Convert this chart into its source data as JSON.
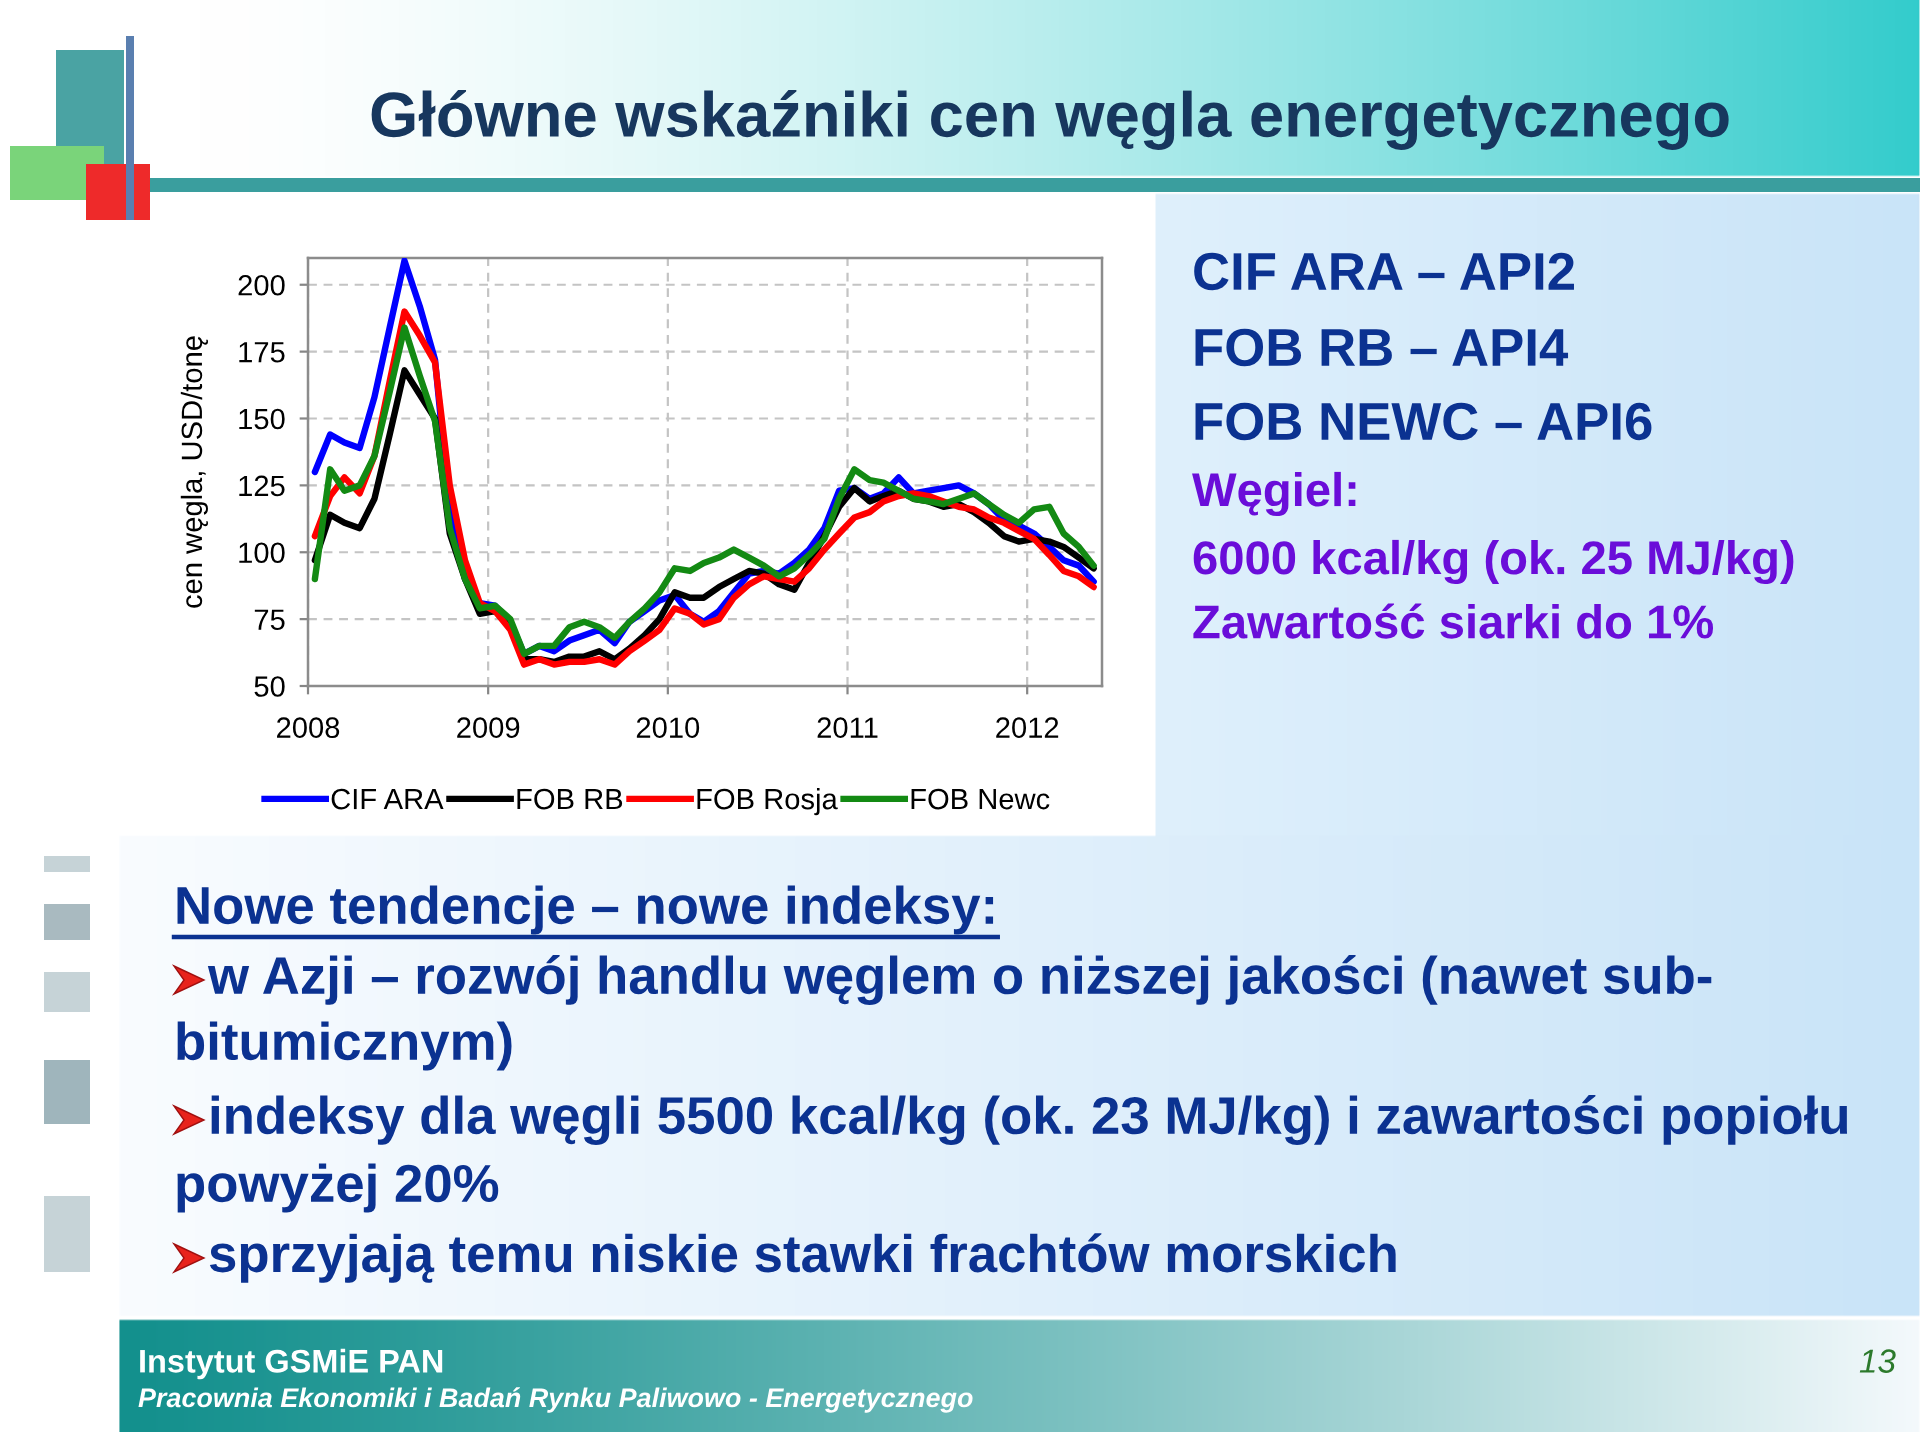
{
  "chart_data": {
    "type": "line",
    "title": "Główne wskaźniki cen węgla energetycznego",
    "ylabel": "cen węgla, USD/tonę",
    "annotations": [
      "CIF ARA – API2",
      "FOB RB – API4",
      "FOB NEWC – API6",
      "Węgiel:",
      "6000 kcal/kg (ok. 25 MJ/kg)",
      "Zawartość siarki do 1%",
      "Nowe tendencje – nowe indeksy:",
      "w Azji – rozwój handlu węglem o niższej jakości (nawet sub-",
      "bitumicznym)",
      "indeksy dla węgli 5500 kcal/kg (ok. 23 MJ/kg) i zawartości popiołu",
      "powyżej 20%",
      "sprzyjają temu niskie stawki frachtów morskich",
      "Instytut GSMiE PAN",
      "Pracownia Ekonomiki i Badań Rynku Paliwowo - Energetycznego",
      "13"
    ],
    "x": [
      "2008-01-15",
      "2008-02-15",
      "2008-03-15",
      "2008-04-15",
      "2008-05-15",
      "2008-06-15",
      "2008-07-15",
      "2008-08-15",
      "2008-09-15",
      "2008-10-15",
      "2008-11-15",
      "2008-12-15",
      "2009-01-15",
      "2009-02-15",
      "2009-03-15",
      "2009-04-15",
      "2009-05-15",
      "2009-06-15",
      "2009-07-15",
      "2009-08-15",
      "2009-09-15",
      "2009-10-15",
      "2009-11-15",
      "2009-12-15",
      "2010-01-15",
      "2010-02-15",
      "2010-03-15",
      "2010-04-15",
      "2010-05-15",
      "2010-06-15",
      "2010-07-15",
      "2010-08-15",
      "2010-09-15",
      "2010-10-15",
      "2010-11-15",
      "2010-12-15",
      "2011-01-15",
      "2011-02-15",
      "2011-03-15",
      "2011-04-15",
      "2011-05-15",
      "2011-06-15",
      "2011-07-15",
      "2011-08-15",
      "2011-09-15",
      "2011-10-15",
      "2011-11-15",
      "2011-12-15",
      "2012-01-15",
      "2012-02-15",
      "2012-03-15",
      "2012-04-15",
      "2012-05-15"
    ],
    "series": [
      {
        "name": "CIF ARA",
        "color": "#0000ff",
        "values": [
          130,
          144,
          141,
          139,
          158,
          184,
          209,
          192,
          172,
          115,
          90,
          81,
          80,
          74,
          62,
          65,
          63,
          67,
          69,
          71,
          66,
          74,
          78,
          82,
          84,
          77,
          74,
          78,
          85,
          92,
          93,
          92,
          96,
          101,
          109,
          123,
          124,
          120,
          122,
          128,
          122,
          123,
          124,
          125,
          122,
          118,
          112,
          110,
          107,
          102,
          97,
          95,
          89
        ]
      },
      {
        "name": "FOB RB",
        "color": "#000000",
        "values": [
          97,
          114,
          111,
          109,
          120,
          144,
          168,
          159,
          150,
          107,
          90,
          77,
          78,
          72,
          60,
          60,
          59,
          61,
          61,
          63,
          60,
          64,
          69,
          75,
          85,
          83,
          83,
          87,
          90,
          93,
          92,
          88,
          86,
          96,
          106,
          117,
          124,
          119,
          121,
          123,
          120,
          119,
          117,
          118,
          115,
          111,
          106,
          104,
          105,
          104,
          102,
          98,
          94
        ]
      },
      {
        "name": "FOB Rosja",
        "color": "#ff0000",
        "values": [
          106,
          121,
          128,
          122,
          136,
          164,
          190,
          181,
          171,
          125,
          97,
          81,
          78,
          71,
          58,
          60,
          58,
          59,
          59,
          60,
          58,
          63,
          67,
          71,
          79,
          77,
          73,
          75,
          83,
          88,
          91,
          90,
          89,
          94,
          101,
          107,
          113,
          115,
          119,
          121,
          122,
          121,
          119,
          117,
          116,
          113,
          111,
          108,
          105,
          99,
          93,
          91,
          87
        ]
      },
      {
        "name": "FOB Newc",
        "color": "#138a13",
        "values": [
          90,
          131,
          123,
          125,
          136,
          160,
          184,
          166,
          149,
          109,
          90,
          79,
          80,
          75,
          62,
          65,
          65,
          72,
          74,
          72,
          68,
          74,
          79,
          85,
          94,
          93,
          96,
          98,
          101,
          98,
          95,
          91,
          94,
          99,
          105,
          120,
          131,
          127,
          126,
          123,
          120,
          119,
          118,
          120,
          122,
          118,
          114,
          111,
          116,
          117,
          107,
          102,
          95
        ]
      }
    ],
    "xlim": [
      "2008-01-01",
      "2012-06-01"
    ],
    "xticks": [
      "2008",
      "2009",
      "2010",
      "2011",
      "2012"
    ],
    "ylim": [
      50,
      210
    ],
    "yticks": [
      50,
      75,
      100,
      125,
      150,
      175,
      200
    ],
    "grid": true,
    "legend": "bottom"
  }
}
